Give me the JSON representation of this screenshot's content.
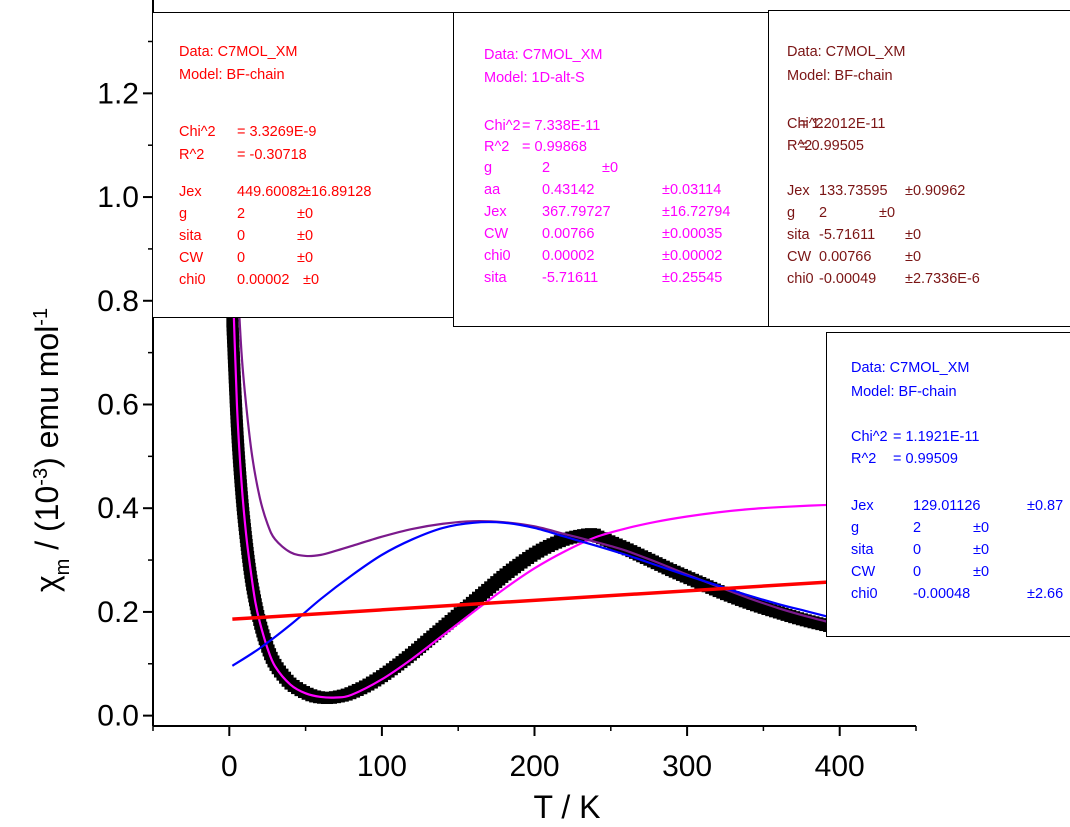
{
  "chart_data": {
    "type": "line",
    "xlabel": "T / K",
    "ylabel_parts": [
      "χ",
      "m",
      " / (10",
      "-3",
      ") emu mol",
      "-1"
    ],
    "xlim": [
      -50,
      450
    ],
    "ylim": [
      -0.02,
      1.38
    ],
    "x_ticks": [
      0,
      100,
      200,
      300,
      400
    ],
    "y_ticks": [
      0.0,
      0.2,
      0.4,
      0.6,
      0.8,
      1.0,
      1.2
    ],
    "y_tick_labels": [
      "0.0",
      "0.2",
      "0.4",
      "0.6",
      "0.8",
      "1.0",
      "1.2"
    ],
    "series": [
      {
        "color": "#000000",
        "style": "square-markers",
        "x": [
          2,
          5,
          8,
          11,
          14,
          17,
          20,
          24,
          28,
          32,
          36,
          40,
          45,
          50,
          55,
          60,
          65,
          70,
          75,
          80,
          90,
          100,
          110,
          120,
          130,
          140,
          150,
          160,
          170,
          180,
          190,
          200,
          210,
          220,
          230,
          238,
          242,
          250,
          260,
          270,
          280,
          290,
          300,
          310,
          320,
          330,
          340,
          350,
          360,
          370,
          380,
          390,
          400
        ],
        "y": [
          0.76,
          0.56,
          0.43,
          0.34,
          0.27,
          0.22,
          0.18,
          0.14,
          0.11,
          0.09,
          0.075,
          0.062,
          0.052,
          0.044,
          0.038,
          0.035,
          0.034,
          0.036,
          0.039,
          0.044,
          0.058,
          0.076,
          0.097,
          0.12,
          0.145,
          0.17,
          0.195,
          0.22,
          0.245,
          0.27,
          0.292,
          0.312,
          0.328,
          0.34,
          0.347,
          0.35,
          0.345,
          0.335,
          0.322,
          0.308,
          0.294,
          0.28,
          0.267,
          0.254,
          0.241,
          0.229,
          0.218,
          0.208,
          0.199,
          0.19,
          0.182,
          0.175,
          0.168
        ]
      },
      {
        "color": "#ff00ff",
        "style": "line",
        "x": [
          2,
          5,
          8,
          11,
          14,
          17,
          20,
          25,
          30,
          40,
          50,
          60,
          70,
          80,
          100,
          120,
          140,
          160,
          180,
          200,
          220,
          240,
          260,
          280,
          300,
          320,
          340,
          360,
          380,
          400
        ],
        "y": [
          0.86,
          0.6,
          0.45,
          0.35,
          0.28,
          0.22,
          0.18,
          0.13,
          0.095,
          0.06,
          0.043,
          0.036,
          0.035,
          0.04,
          0.07,
          0.11,
          0.155,
          0.2,
          0.244,
          0.284,
          0.317,
          0.344,
          0.361,
          0.374,
          0.384,
          0.392,
          0.398,
          0.402,
          0.405,
          0.407
        ]
      },
      {
        "color": "#7b1a8c",
        "style": "line",
        "x": [
          5,
          8,
          11,
          15,
          20,
          25,
          30,
          40,
          50,
          60,
          70,
          80,
          100,
          120,
          140,
          160,
          180,
          200,
          220,
          240,
          250,
          260,
          280,
          300,
          320,
          340,
          360,
          380,
          400
        ],
        "y": [
          0.86,
          0.7,
          0.6,
          0.5,
          0.42,
          0.37,
          0.34,
          0.315,
          0.308,
          0.31,
          0.318,
          0.327,
          0.345,
          0.36,
          0.37,
          0.375,
          0.373,
          0.365,
          0.35,
          0.335,
          0.327,
          0.318,
          0.296,
          0.272,
          0.249,
          0.227,
          0.207,
          0.19,
          0.175
        ]
      },
      {
        "color": "#0000ff",
        "style": "line",
        "x": [
          2,
          20,
          40,
          60,
          80,
          100,
          120,
          140,
          160,
          180,
          200,
          220,
          240,
          260,
          280,
          300,
          320,
          340,
          360,
          380,
          400
        ],
        "y": [
          0.096,
          0.13,
          0.175,
          0.225,
          0.27,
          0.31,
          0.34,
          0.362,
          0.372,
          0.372,
          0.362,
          0.345,
          0.328,
          0.31,
          0.29,
          0.27,
          0.251,
          0.232,
          0.215,
          0.2,
          0.185
        ]
      },
      {
        "color": "#ff0000",
        "style": "line",
        "x": [
          2,
          400
        ],
        "y": [
          0.186,
          0.259
        ]
      }
    ]
  },
  "fit_boxes": [
    {
      "color": "#ff0000",
      "data_label": "Data: C7MOL_XM",
      "model_label": "Model: BF-chain",
      "stats": [
        [
          "Chi^2",
          "= 3.3269E-9"
        ],
        [
          "R^2",
          "= -0.30718"
        ]
      ],
      "params": [
        [
          "Jex",
          "449.60082",
          "±16.89128"
        ],
        [
          "g",
          "2",
          "±0"
        ],
        [
          "sita",
          "0",
          "±0"
        ],
        [
          "CW",
          "0",
          "±0"
        ],
        [
          "chi0",
          "0.00002",
          "±0"
        ]
      ]
    },
    {
      "color": "#ff00ff",
      "data_label": "Data: C7MOL_XM",
      "model_label": "Model: 1D-alt-S",
      "stats": [
        [
          "Chi^2",
          "= 7.338E-11"
        ],
        [
          "R^2",
          "= 0.99868"
        ]
      ],
      "params": [
        [
          "g",
          "2",
          "±0"
        ],
        [
          "aa",
          "0.43142",
          "±0.03114"
        ],
        [
          "Jex",
          "367.79727",
          "±16.72794"
        ],
        [
          "CW",
          "0.00766",
          "±0.00035"
        ],
        [
          "chi0",
          "0.00002",
          "±0.00002"
        ],
        [
          "sita",
          "-5.71611",
          "±0.25545"
        ]
      ]
    },
    {
      "color": "#7a1414",
      "data_label": "Data: C7MOL_XM",
      "model_label": "Model: BF-chain",
      "stats": [
        [
          "Chi^2",
          "= 1.2012E-11"
        ],
        [
          "R^2",
          "= 0.99505"
        ]
      ],
      "params": [
        [
          "Jex",
          "133.73595",
          "±0.90962"
        ],
        [
          "g",
          "2",
          "±0"
        ],
        [
          "sita",
          "-5.71611",
          "±0"
        ],
        [
          "CW",
          "0.00766",
          "±0"
        ],
        [
          "chi0",
          "-0.00049",
          "±2.7336E-6"
        ]
      ]
    },
    {
      "color": "#0000ff",
      "data_label": "Data: C7MOL_XM",
      "model_label": "Model: BF-chain",
      "stats": [
        [
          "Chi^2",
          "= 1.1921E-11"
        ],
        [
          "R^2",
          "= 0.99509"
        ]
      ],
      "params": [
        [
          "Jex",
          "129.01126",
          "±0.87"
        ],
        [
          "g",
          "2",
          "±0"
        ],
        [
          "sita",
          "0",
          "±0"
        ],
        [
          "CW",
          "0",
          "±0"
        ],
        [
          "chi0",
          "-0.00048",
          "±2.66"
        ]
      ]
    }
  ]
}
